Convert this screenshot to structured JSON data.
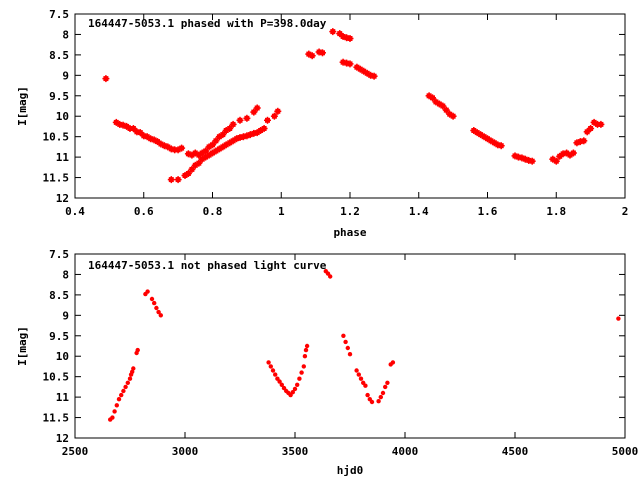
{
  "chart_data": [
    {
      "type": "scatter",
      "title": "164447-5053.1 phased with P=398.0day",
      "xlabel": "phase",
      "ylabel": "I[mag]",
      "xlim": [
        0.4,
        2.0
      ],
      "ylim": [
        12.0,
        7.5
      ],
      "y_inverted": true,
      "grid": false,
      "marker_color": "#ff0000",
      "xticks": [
        "0.4",
        "0.6",
        "0.8",
        "1",
        "1.2",
        "1.4",
        "1.6",
        "1.8",
        "2"
      ],
      "yticks": [
        "7.5",
        "8",
        "8.5",
        "9",
        "9.5",
        "10",
        "10.5",
        "11",
        "11.5",
        "12"
      ],
      "series": [
        {
          "points": [
            [
              0.49,
              9.08
            ],
            [
              0.52,
              10.15
            ],
            [
              0.53,
              10.2
            ],
            [
              0.54,
              10.22
            ],
            [
              0.55,
              10.25
            ],
            [
              0.56,
              10.3
            ],
            [
              0.57,
              10.3
            ],
            [
              0.58,
              10.38
            ],
            [
              0.59,
              10.4
            ],
            [
              0.6,
              10.48
            ],
            [
              0.61,
              10.5
            ],
            [
              0.62,
              10.55
            ],
            [
              0.63,
              10.58
            ],
            [
              0.64,
              10.62
            ],
            [
              0.65,
              10.68
            ],
            [
              0.66,
              10.72
            ],
            [
              0.67,
              10.75
            ],
            [
              0.68,
              10.8
            ],
            [
              0.69,
              10.82
            ],
            [
              0.7,
              10.82
            ],
            [
              0.71,
              10.78
            ],
            [
              0.68,
              11.55
            ],
            [
              0.7,
              11.55
            ],
            [
              0.72,
              11.45
            ],
            [
              0.73,
              11.4
            ],
            [
              0.74,
              11.3
            ],
            [
              0.75,
              11.2
            ],
            [
              0.76,
              11.15
            ],
            [
              0.77,
              11.05
            ],
            [
              0.78,
              11.0
            ],
            [
              0.79,
              10.95
            ],
            [
              0.8,
              10.9
            ],
            [
              0.81,
              10.85
            ],
            [
              0.82,
              10.8
            ],
            [
              0.83,
              10.75
            ],
            [
              0.84,
              10.7
            ],
            [
              0.85,
              10.65
            ],
            [
              0.86,
              10.6
            ],
            [
              0.87,
              10.55
            ],
            [
              0.88,
              10.52
            ],
            [
              0.89,
              10.5
            ],
            [
              0.9,
              10.48
            ],
            [
              0.91,
              10.45
            ],
            [
              0.92,
              10.42
            ],
            [
              0.93,
              10.4
            ],
            [
              0.94,
              10.35
            ],
            [
              0.95,
              10.3
            ],
            [
              0.73,
              10.92
            ],
            [
              0.74,
              10.95
            ],
            [
              0.75,
              10.9
            ],
            [
              0.76,
              10.95
            ],
            [
              0.77,
              10.9
            ],
            [
              0.78,
              10.85
            ],
            [
              0.79,
              10.75
            ],
            [
              0.8,
              10.7
            ],
            [
              0.81,
              10.6
            ],
            [
              0.82,
              10.5
            ],
            [
              0.83,
              10.45
            ],
            [
              0.84,
              10.35
            ],
            [
              0.85,
              10.3
            ],
            [
              0.86,
              10.2
            ],
            [
              0.88,
              10.1
            ],
            [
              0.9,
              10.05
            ],
            [
              0.92,
              9.9
            ],
            [
              0.93,
              9.8
            ],
            [
              0.96,
              10.1
            ],
            [
              0.98,
              10.0
            ],
            [
              0.99,
              9.88
            ],
            [
              1.08,
              8.48
            ],
            [
              1.09,
              8.52
            ],
            [
              1.11,
              8.43
            ],
            [
              1.12,
              8.45
            ],
            [
              1.15,
              7.93
            ],
            [
              1.17,
              7.98
            ],
            [
              1.18,
              8.05
            ],
            [
              1.19,
              8.08
            ],
            [
              1.2,
              8.1
            ],
            [
              1.18,
              8.68
            ],
            [
              1.19,
              8.7
            ],
            [
              1.2,
              8.72
            ],
            [
              1.22,
              8.8
            ],
            [
              1.23,
              8.85
            ],
            [
              1.24,
              8.9
            ],
            [
              1.25,
              8.95
            ],
            [
              1.26,
              9.0
            ],
            [
              1.27,
              9.02
            ],
            [
              1.43,
              9.5
            ],
            [
              1.44,
              9.55
            ],
            [
              1.45,
              9.65
            ],
            [
              1.46,
              9.7
            ],
            [
              1.47,
              9.75
            ],
            [
              1.48,
              9.85
            ],
            [
              1.49,
              9.95
            ],
            [
              1.5,
              10.0
            ],
            [
              1.56,
              10.35
            ],
            [
              1.57,
              10.4
            ],
            [
              1.58,
              10.45
            ],
            [
              1.59,
              10.5
            ],
            [
              1.6,
              10.55
            ],
            [
              1.61,
              10.6
            ],
            [
              1.62,
              10.65
            ],
            [
              1.63,
              10.7
            ],
            [
              1.64,
              10.72
            ],
            [
              1.68,
              10.97
            ],
            [
              1.69,
              11.0
            ],
            [
              1.7,
              11.02
            ],
            [
              1.71,
              11.05
            ],
            [
              1.72,
              11.08
            ],
            [
              1.73,
              11.1
            ],
            [
              1.79,
              11.05
            ],
            [
              1.8,
              11.1
            ],
            [
              1.81,
              10.98
            ],
            [
              1.82,
              10.92
            ],
            [
              1.83,
              10.9
            ],
            [
              1.84,
              10.95
            ],
            [
              1.85,
              10.9
            ],
            [
              1.86,
              10.65
            ],
            [
              1.87,
              10.62
            ],
            [
              1.88,
              10.6
            ],
            [
              1.89,
              10.38
            ],
            [
              1.9,
              10.3
            ],
            [
              1.91,
              10.15
            ],
            [
              1.92,
              10.2
            ],
            [
              1.93,
              10.2
            ]
          ]
        }
      ]
    },
    {
      "type": "scatter",
      "title": "164447-5053.1 not phased light curve",
      "xlabel": "hjd0",
      "ylabel": "I[mag]",
      "xlim": [
        2500,
        5000
      ],
      "ylim": [
        12.0,
        7.5
      ],
      "y_inverted": true,
      "grid": false,
      "marker_color": "#ff0000",
      "xticks": [
        "2500",
        "3000",
        "3500",
        "4000",
        "4500",
        "5000"
      ],
      "yticks": [
        "7.5",
        "8",
        "8.5",
        "9",
        "9.5",
        "10",
        "10.5",
        "11",
        "11.5",
        "12"
      ],
      "series": [
        {
          "points": [
            [
              2660,
              11.55
            ],
            [
              2670,
              11.5
            ],
            [
              2680,
              11.35
            ],
            [
              2690,
              11.2
            ],
            [
              2700,
              11.05
            ],
            [
              2710,
              10.95
            ],
            [
              2720,
              10.85
            ],
            [
              2730,
              10.75
            ],
            [
              2740,
              10.65
            ],
            [
              2750,
              10.55
            ],
            [
              2755,
              10.45
            ],
            [
              2760,
              10.38
            ],
            [
              2765,
              10.3
            ],
            [
              2780,
              9.92
            ],
            [
              2785,
              9.85
            ],
            [
              2820,
              8.48
            ],
            [
              2830,
              8.42
            ],
            [
              2850,
              8.6
            ],
            [
              2860,
              8.7
            ],
            [
              2870,
              8.82
            ],
            [
              2880,
              8.92
            ],
            [
              2890,
              9.0
            ],
            [
              3380,
              10.15
            ],
            [
              3390,
              10.25
            ],
            [
              3400,
              10.35
            ],
            [
              3410,
              10.45
            ],
            [
              3420,
              10.55
            ],
            [
              3430,
              10.62
            ],
            [
              3440,
              10.7
            ],
            [
              3450,
              10.78
            ],
            [
              3460,
              10.85
            ],
            [
              3470,
              10.9
            ],
            [
              3480,
              10.95
            ],
            [
              3490,
              10.88
            ],
            [
              3500,
              10.8
            ],
            [
              3510,
              10.7
            ],
            [
              3520,
              10.55
            ],
            [
              3530,
              10.4
            ],
            [
              3540,
              10.25
            ],
            [
              3545,
              10.0
            ],
            [
              3550,
              9.85
            ],
            [
              3555,
              9.75
            ],
            [
              3640,
              7.92
            ],
            [
              3650,
              7.98
            ],
            [
              3660,
              8.05
            ],
            [
              3720,
              9.5
            ],
            [
              3730,
              9.65
            ],
            [
              3740,
              9.8
            ],
            [
              3750,
              9.95
            ],
            [
              3780,
              10.35
            ],
            [
              3790,
              10.45
            ],
            [
              3800,
              10.55
            ],
            [
              3810,
              10.65
            ],
            [
              3820,
              10.72
            ],
            [
              3830,
              10.95
            ],
            [
              3840,
              11.05
            ],
            [
              3850,
              11.12
            ],
            [
              3880,
              11.1
            ],
            [
              3890,
              11.0
            ],
            [
              3900,
              10.9
            ],
            [
              3910,
              10.75
            ],
            [
              3920,
              10.65
            ],
            [
              3935,
              10.2
            ],
            [
              3945,
              10.15
            ],
            [
              4970,
              9.08
            ]
          ]
        }
      ]
    }
  ]
}
